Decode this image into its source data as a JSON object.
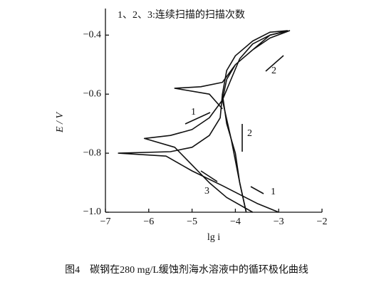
{
  "chart_data": {
    "type": "line",
    "caption": "图4　碳钢在280 mg/L缓蚀剂海水溶液中的循环极化曲线",
    "note": "1、2、3:连续扫描的扫描次数",
    "xlabel": "lg i",
    "ylabel": "E / V",
    "xlim": [
      -7,
      -2
    ],
    "xticks": [
      {
        "value": -7,
        "label": "−7"
      },
      {
        "value": -6,
        "label": "−6"
      },
      {
        "value": -5,
        "label": "−5"
      },
      {
        "value": -4,
        "label": "−4"
      },
      {
        "value": -3,
        "label": "−3"
      },
      {
        "value": -2,
        "label": "−2"
      }
    ],
    "ylim": [
      -1.0,
      -0.31
    ],
    "yticks": [
      {
        "value": -1.0,
        "label": "−1.0"
      },
      {
        "value": -0.8,
        "label": "−0.8"
      },
      {
        "value": -0.6,
        "label": "−0.6"
      },
      {
        "value": -0.4,
        "label": "−0.4"
      }
    ],
    "annotations": [
      "1",
      "2",
      "3",
      "1",
      "2"
    ],
    "series": [
      {
        "color": "#111111",
        "x": [
          -3.6,
          -4.2,
          -4.6,
          -5.0,
          -5.4,
          -6.1,
          -5.5,
          -5.0,
          -4.6,
          -4.3,
          -4.1,
          -3.9,
          -3.6,
          -3.2,
          -2.8,
          -3.2,
          -3.6,
          -4.0,
          -4.2,
          -4.3,
          -4.2,
          -4.0,
          -3.9,
          -3.75
        ],
        "values": [
          -1.0,
          -0.95,
          -0.9,
          -0.84,
          -0.78,
          -0.75,
          -0.74,
          -0.72,
          -0.68,
          -0.62,
          -0.55,
          -0.48,
          -0.43,
          -0.4,
          -0.385,
          -0.39,
          -0.42,
          -0.47,
          -0.52,
          -0.6,
          -0.7,
          -0.8,
          -0.9,
          -1.0
        ]
      },
      {
        "color": "#111111",
        "x": [
          -4.3,
          -4.6,
          -5.4,
          -4.8,
          -4.3,
          -4.0,
          -3.6,
          -3.2,
          -2.75,
          -3.2,
          -3.6,
          -4.0,
          -4.2,
          -4.3,
          -4.1,
          -3.9,
          -3.75
        ],
        "values": [
          -0.65,
          -0.6,
          -0.58,
          -0.575,
          -0.56,
          -0.5,
          -0.45,
          -0.4,
          -0.385,
          -0.41,
          -0.45,
          -0.5,
          -0.55,
          -0.62,
          -0.75,
          -0.9,
          -1.0
        ]
      },
      {
        "color": "#111111",
        "x": [
          -3.0,
          -3.5,
          -4.3,
          -5.0,
          -5.6,
          -6.7,
          -5.5,
          -5.0,
          -4.6,
          -4.35,
          -4.3
        ],
        "values": [
          -1.0,
          -0.97,
          -0.91,
          -0.86,
          -0.81,
          -0.8,
          -0.795,
          -0.78,
          -0.74,
          -0.68,
          -0.6
        ]
      }
    ]
  }
}
